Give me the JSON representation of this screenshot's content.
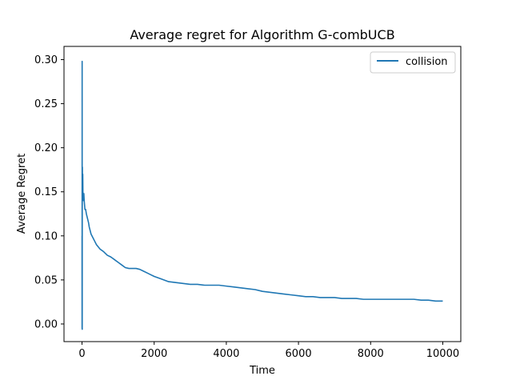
{
  "chart_data": {
    "type": "line",
    "title": "Average regret for Algorithm G-combUCB",
    "xlabel": "Time",
    "ylabel": "Average Regret",
    "xlim": [
      -500,
      10500
    ],
    "ylim": [
      -0.02,
      0.315
    ],
    "xticks": [
      0,
      2000,
      4000,
      6000,
      8000,
      10000
    ],
    "xtick_labels": [
      "0",
      "2000",
      "4000",
      "6000",
      "8000",
      "10000"
    ],
    "yticks": [
      0.0,
      0.05,
      0.1,
      0.15,
      0.2,
      0.25,
      0.3
    ],
    "ytick_labels": [
      "0.00",
      "0.05",
      "0.10",
      "0.15",
      "0.20",
      "0.25",
      "0.30"
    ],
    "grid": false,
    "legend_position": "top-right",
    "series": [
      {
        "name": "collision",
        "color": "#1f77b4",
        "x": [
          0,
          1,
          2,
          3,
          4,
          5,
          6,
          8,
          10,
          12,
          15,
          20,
          25,
          30,
          40,
          50,
          60,
          70,
          80,
          100,
          120,
          150,
          180,
          200,
          250,
          300,
          350,
          400,
          500,
          600,
          700,
          800,
          900,
          1000,
          1100,
          1200,
          1300,
          1400,
          1500,
          1600,
          1700,
          1800,
          1900,
          2000,
          2200,
          2400,
          2600,
          2800,
          3000,
          3200,
          3400,
          3600,
          3800,
          4000,
          4200,
          4400,
          4600,
          4800,
          5000,
          5200,
          5400,
          5600,
          5800,
          6000,
          6200,
          6400,
          6600,
          6800,
          7000,
          7200,
          7400,
          7600,
          7800,
          8000,
          8200,
          8400,
          8600,
          8800,
          9000,
          9200,
          9400,
          9600,
          9800,
          10000
        ],
        "y": [
          0.1,
          -0.005,
          0.09,
          0.298,
          0.1,
          -0.006,
          0.14,
          0.17,
          0.178,
          0.15,
          0.16,
          0.17,
          0.15,
          0.145,
          0.14,
          0.148,
          0.14,
          0.135,
          0.13,
          0.13,
          0.125,
          0.12,
          0.115,
          0.11,
          0.102,
          0.098,
          0.094,
          0.09,
          0.085,
          0.082,
          0.078,
          0.076,
          0.073,
          0.07,
          0.067,
          0.064,
          0.063,
          0.063,
          0.063,
          0.062,
          0.06,
          0.058,
          0.056,
          0.054,
          0.051,
          0.048,
          0.047,
          0.046,
          0.045,
          0.045,
          0.044,
          0.044,
          0.044,
          0.043,
          0.042,
          0.041,
          0.04,
          0.039,
          0.037,
          0.036,
          0.035,
          0.034,
          0.033,
          0.032,
          0.031,
          0.031,
          0.03,
          0.03,
          0.03,
          0.029,
          0.029,
          0.029,
          0.028,
          0.028,
          0.028,
          0.028,
          0.028,
          0.028,
          0.028,
          0.028,
          0.027,
          0.027,
          0.026,
          0.026
        ]
      }
    ]
  }
}
